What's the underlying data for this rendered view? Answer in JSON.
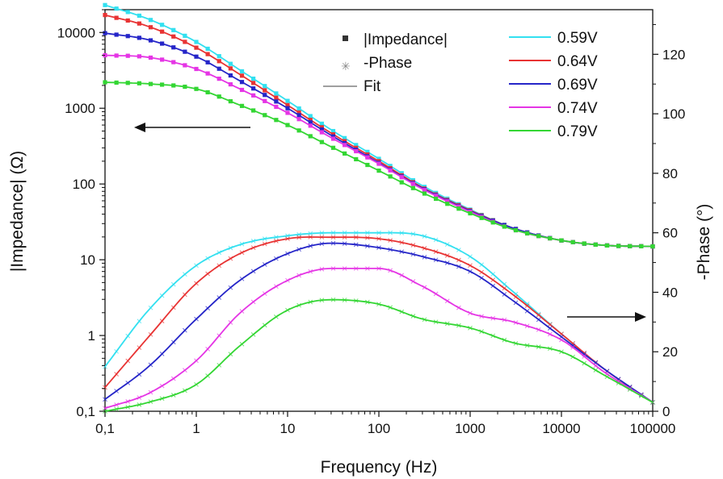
{
  "chart_data": {
    "type": "line",
    "x_scale": "log",
    "left_y_scale": "log",
    "xlabel": "Frequency (Hz)",
    "ylabel_left": "|Impedance| (Ω)",
    "ylabel_right": "-Phase (°)",
    "xlim": [
      0.1,
      100000
    ],
    "ylim_left": [
      0.1,
      20000
    ],
    "ylim_right": [
      0,
      135
    ],
    "x_ticks": [
      "0,1",
      "1",
      "10",
      "100",
      "1000",
      "10000",
      "100000"
    ],
    "left_y_ticks": [
      "0,1",
      "1",
      "10",
      "100",
      "1000",
      "10000"
    ],
    "right_y_ticks": [
      "0",
      "20",
      "40",
      "60",
      "80",
      "100",
      "120"
    ],
    "legend_markers": {
      "impedance": "|Impedance|",
      "phase": "-Phase",
      "fit": "Fit"
    },
    "grid": false,
    "x": [
      0.1,
      0.3,
      1,
      3,
      10,
      30,
      100,
      300,
      1000,
      3000,
      10000,
      30000,
      100000
    ],
    "series": [
      {
        "name": "0.59V",
        "color": "#33e0f0",
        "impedance": [
          23000,
          15000,
          7500,
          3200,
          1250,
          520,
          215,
          95,
          46,
          26,
          18,
          15.5,
          15
        ],
        "phase": [
          15,
          34,
          49,
          56,
          59,
          60,
          60,
          59,
          52,
          40,
          26,
          14,
          3
        ]
      },
      {
        "name": "0.64V",
        "color": "#e83333",
        "impedance": [
          17000,
          12000,
          6300,
          2800,
          1100,
          470,
          200,
          90,
          45,
          26,
          18,
          15.5,
          15
        ],
        "phase": [
          8,
          25,
          43,
          53,
          58,
          58.5,
          58,
          55,
          49,
          39,
          26,
          14,
          3
        ]
      },
      {
        "name": "0.69V",
        "color": "#2525c8",
        "impedance": [
          9800,
          8000,
          4800,
          2300,
          1000,
          440,
          190,
          88,
          44,
          26,
          18,
          15.5,
          15
        ],
        "phase": [
          4,
          15,
          31,
          44,
          53,
          56.5,
          55,
          52,
          47,
          37,
          25,
          14,
          3
        ]
      },
      {
        "name": "0.74V",
        "color": "#e535e5",
        "impedance": [
          5000,
          4700,
          3300,
          1800,
          870,
          410,
          185,
          86,
          43,
          25,
          18,
          15.5,
          15
        ],
        "phase": [
          1,
          6,
          17,
          33,
          44,
          48,
          48,
          42,
          33,
          30,
          24,
          13,
          3
        ]
      },
      {
        "name": "0.79V",
        "color": "#33d633",
        "impedance": [
          2200,
          2100,
          1800,
          1100,
          600,
          310,
          150,
          77,
          41,
          25,
          18,
          15.5,
          15
        ],
        "phase": [
          0,
          3,
          9,
          22,
          34,
          37.5,
          36,
          31,
          28,
          23,
          20,
          12,
          3
        ]
      }
    ]
  }
}
